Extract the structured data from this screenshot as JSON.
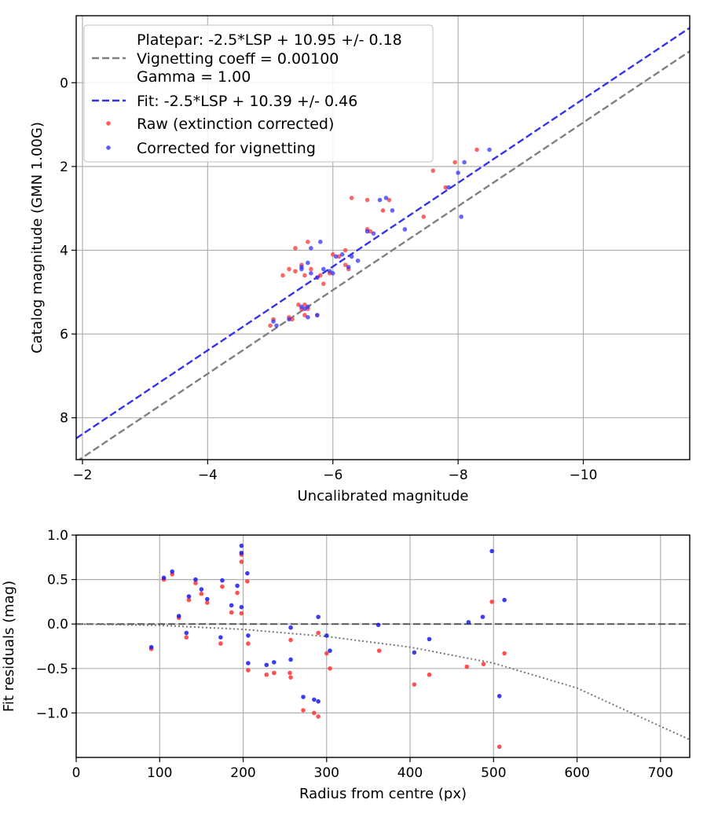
{
  "chart_data": [
    {
      "type": "scatter",
      "xlabel": "Uncalibrated magnitude",
      "ylabel": "Catalog magnitude (GMN 1.00G)",
      "xlim": [
        -1.9,
        -11.7
      ],
      "ylim": [
        9.0,
        -1.6
      ],
      "xticks": [
        -2,
        -4,
        -6,
        -8,
        -10
      ],
      "yticks": [
        0,
        2,
        4,
        6,
        8
      ],
      "xtick_labels": [
        "−2",
        "−4",
        "−6",
        "−8",
        "−10"
      ],
      "ytick_labels": [
        "0",
        "2",
        "4",
        "6",
        "8"
      ],
      "grid": true,
      "legend": {
        "placement": "upper-left",
        "entries": [
          {
            "label": "Platepar: -2.5*LSP + 10.95 +/- 0.18",
            "style": "none"
          },
          {
            "label": "Vignetting coeff = 0.00100",
            "style": "dashed",
            "color": "#808080"
          },
          {
            "label": "Gamma = 1.00",
            "style": "none"
          },
          {
            "label": "Fit: -2.5*LSP + 10.39 +/- 0.46",
            "style": "dashed",
            "color": "#3333ee"
          },
          {
            "label": "Raw (extinction corrected)",
            "style": "dot",
            "color": "#ff3333"
          },
          {
            "label": "Corrected for vignetting",
            "style": "dot",
            "color": "#3333ff"
          }
        ]
      },
      "lines": [
        {
          "name": "Platepar",
          "slope": 1,
          "intercept": 10.95,
          "color": "#808080"
        },
        {
          "name": "Fit",
          "slope": 1,
          "intercept": 10.39,
          "color": "#3333ee"
        }
      ],
      "series": [
        {
          "name": "Raw (extinction corrected)",
          "color": "#ff3333",
          "points": [
            [
              -5.0,
              5.8
            ],
            [
              -5.05,
              5.65
            ],
            [
              -5.3,
              5.6
            ],
            [
              -5.35,
              5.65
            ],
            [
              -5.45,
              5.3
            ],
            [
              -5.5,
              5.4
            ],
            [
              -5.55,
              5.3
            ],
            [
              -5.6,
              5.4
            ],
            [
              -5.55,
              5.55
            ],
            [
              -5.2,
              4.6
            ],
            [
              -5.3,
              4.45
            ],
            [
              -5.4,
              4.5
            ],
            [
              -5.5,
              4.35
            ],
            [
              -5.55,
              4.6
            ],
            [
              -5.65,
              4.45
            ],
            [
              -5.6,
              3.8
            ],
            [
              -5.4,
              3.95
            ],
            [
              -5.75,
              4.65
            ],
            [
              -5.8,
              4.6
            ],
            [
              -5.85,
              4.8
            ],
            [
              -5.95,
              4.55
            ],
            [
              -6.0,
              4.1
            ],
            [
              -6.1,
              4.15
            ],
            [
              -6.2,
              4.0
            ],
            [
              -6.2,
              4.35
            ],
            [
              -6.25,
              4.45
            ],
            [
              -6.3,
              2.75
            ],
            [
              -6.55,
              3.5
            ],
            [
              -6.55,
              2.8
            ],
            [
              -6.6,
              3.55
            ],
            [
              -6.8,
              3.05
            ],
            [
              -6.9,
              2.8
            ],
            [
              -7.45,
              3.2
            ],
            [
              -7.6,
              2.1
            ],
            [
              -7.8,
              2.5
            ],
            [
              -7.95,
              1.9
            ],
            [
              -8.3,
              1.6
            ],
            [
              -5.75,
              5.55
            ]
          ]
        },
        {
          "name": "Corrected for vignetting",
          "color": "#3333ff",
          "points": [
            [
              -5.05,
              5.7
            ],
            [
              -5.1,
              5.8
            ],
            [
              -5.3,
              5.65
            ],
            [
              -5.5,
              5.35
            ],
            [
              -5.55,
              5.4
            ],
            [
              -5.6,
              5.35
            ],
            [
              -5.6,
              5.6
            ],
            [
              -5.75,
              5.55
            ],
            [
              -5.5,
              4.45
            ],
            [
              -5.6,
              4.3
            ],
            [
              -5.65,
              4.55
            ],
            [
              -5.75,
              4.65
            ],
            [
              -5.85,
              4.45
            ],
            [
              -5.65,
              3.95
            ],
            [
              -5.8,
              3.8
            ],
            [
              -5.95,
              4.5
            ],
            [
              -6.05,
              4.15
            ],
            [
              -6.15,
              4.1
            ],
            [
              -6.25,
              4.4
            ],
            [
              -6.3,
              4.15
            ],
            [
              -6.4,
              4.25
            ],
            [
              -6.55,
              3.55
            ],
            [
              -6.65,
              3.6
            ],
            [
              -6.75,
              2.8
            ],
            [
              -6.85,
              2.75
            ],
            [
              -6.95,
              3.05
            ],
            [
              -7.15,
              3.5
            ],
            [
              -7.85,
              2.5
            ],
            [
              -8.0,
              2.15
            ],
            [
              -8.05,
              3.2
            ],
            [
              -8.1,
              1.9
            ],
            [
              -8.5,
              1.6
            ],
            [
              -6.0,
              4.55
            ],
            [
              -5.5,
              4.4
            ]
          ]
        }
      ]
    },
    {
      "type": "scatter",
      "xlabel": "Radius from centre (px)",
      "ylabel": "Fit residuals (mag)",
      "xlim": [
        0,
        735
      ],
      "ylim": [
        -1.5,
        1.0
      ],
      "xticks": [
        0,
        100,
        200,
        300,
        400,
        500,
        600,
        700
      ],
      "yticks": [
        1.0,
        0.5,
        0.0,
        -0.5,
        -1.0
      ],
      "xtick_labels": [
        "0",
        "100",
        "200",
        "300",
        "400",
        "500",
        "600",
        "700"
      ],
      "ytick_labels": [
        "1.0",
        "0.5",
        "0.0",
        "−0.5",
        "−1.0"
      ],
      "grid": true,
      "zero_line": {
        "y": 0,
        "style": "dashed",
        "color": "#555555"
      },
      "vignetting_curve": {
        "style": "dotted",
        "color": "#777777",
        "points": [
          [
            0,
            0.0
          ],
          [
            100,
            -0.015
          ],
          [
            200,
            -0.06
          ],
          [
            300,
            -0.14
          ],
          [
            400,
            -0.26
          ],
          [
            500,
            -0.44
          ],
          [
            600,
            -0.72
          ],
          [
            700,
            -1.15
          ],
          [
            735,
            -1.3
          ]
        ]
      },
      "series": [
        {
          "name": "Raw",
          "color": "#ff3333",
          "points": [
            [
              90,
              -0.28
            ],
            [
              105,
              0.5
            ],
            [
              115,
              0.56
            ],
            [
              123,
              0.07
            ],
            [
              132,
              -0.15
            ],
            [
              135,
              0.27
            ],
            [
              143,
              0.46
            ],
            [
              150,
              0.34
            ],
            [
              157,
              0.24
            ],
            [
              173,
              -0.22
            ],
            [
              175,
              0.42
            ],
            [
              186,
              0.13
            ],
            [
              193,
              0.35
            ],
            [
              198,
              0.7
            ],
            [
              198,
              0.78
            ],
            [
              198,
              0.12
            ],
            [
              205,
              0.48
            ],
            [
              206,
              -0.22
            ],
            [
              206,
              -0.52
            ],
            [
              228,
              -0.57
            ],
            [
              237,
              -0.55
            ],
            [
              256,
              -0.55
            ],
            [
              257,
              -0.6
            ],
            [
              257,
              -0.18
            ],
            [
              272,
              -0.97
            ],
            [
              285,
              -1.0
            ],
            [
              290,
              -1.04
            ],
            [
              290,
              -0.1
            ],
            [
              300,
              -0.33
            ],
            [
              304,
              -0.5
            ],
            [
              363,
              -0.3
            ],
            [
              405,
              -0.68
            ],
            [
              423,
              -0.57
            ],
            [
              468,
              -0.48
            ],
            [
              488,
              -0.45
            ],
            [
              498,
              0.25
            ],
            [
              507,
              -1.38
            ],
            [
              513,
              -0.33
            ]
          ]
        },
        {
          "name": "Corrected",
          "color": "#1a1aee",
          "points": [
            [
              90,
              -0.26
            ],
            [
              105,
              0.52
            ],
            [
              115,
              0.59
            ],
            [
              123,
              0.09
            ],
            [
              132,
              -0.1
            ],
            [
              135,
              0.31
            ],
            [
              143,
              0.5
            ],
            [
              150,
              0.39
            ],
            [
              157,
              0.28
            ],
            [
              173,
              -0.15
            ],
            [
              175,
              0.49
            ],
            [
              186,
              0.21
            ],
            [
              193,
              0.43
            ],
            [
              198,
              0.19
            ],
            [
              198,
              0.8
            ],
            [
              198,
              0.88
            ],
            [
              205,
              0.57
            ],
            [
              206,
              -0.13
            ],
            [
              206,
              -0.44
            ],
            [
              228,
              -0.46
            ],
            [
              237,
              -0.43
            ],
            [
              257,
              -0.4
            ],
            [
              257,
              -0.04
            ],
            [
              272,
              -0.82
            ],
            [
              285,
              -0.85
            ],
            [
              290,
              -0.87
            ],
            [
              290,
              0.08
            ],
            [
              300,
              -0.13
            ],
            [
              304,
              -0.3
            ],
            [
              362,
              -0.01
            ],
            [
              405,
              -0.32
            ],
            [
              423,
              -0.17
            ],
            [
              470,
              0.02
            ],
            [
              487,
              0.08
            ],
            [
              498,
              0.82
            ],
            [
              507,
              -0.81
            ],
            [
              513,
              0.27
            ]
          ]
        }
      ]
    }
  ]
}
